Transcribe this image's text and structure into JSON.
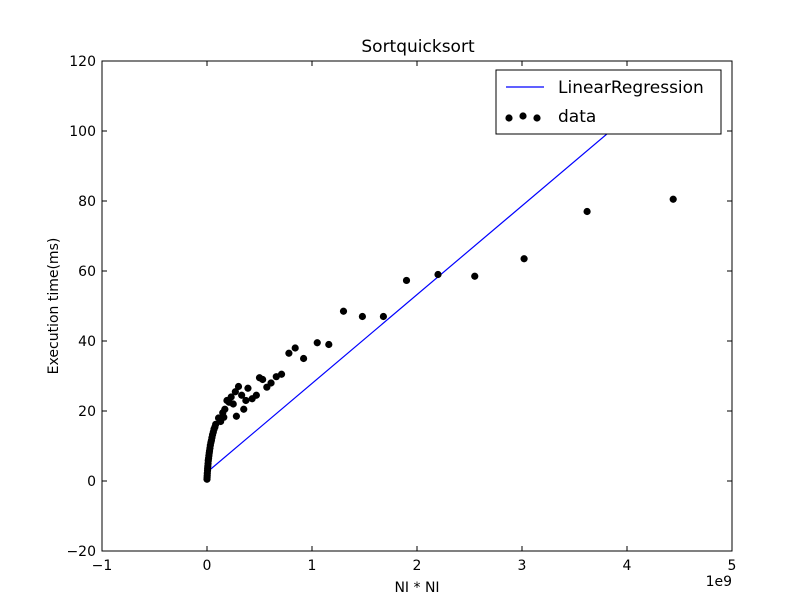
{
  "chart_data": {
    "type": "scatter",
    "title": "Sortquicksort",
    "xlabel": "NI * NI",
    "ylabel": "Execution time(ms)",
    "x_scale_label": "1e9",
    "xlim": [
      -1,
      5
    ],
    "ylim": [
      -20,
      120
    ],
    "xticks": [
      -1,
      0,
      1,
      2,
      3,
      4,
      5
    ],
    "yticks": [
      -20,
      0,
      20,
      40,
      60,
      80,
      100,
      120
    ],
    "xtick_labels": [
      "−1",
      "0",
      "1",
      "2",
      "3",
      "4",
      "5"
    ],
    "ytick_labels": [
      "−20",
      "0",
      "20",
      "40",
      "60",
      "80",
      "100",
      "120"
    ],
    "grid": false,
    "legend": {
      "position": "top-right",
      "entries": [
        {
          "label": "LinearRegression",
          "kind": "line",
          "color": "#0000ff"
        },
        {
          "label": "data",
          "kind": "marker",
          "color": "#000000"
        }
      ]
    },
    "series": [
      {
        "name": "LinearRegression",
        "kind": "line",
        "color": "#0000ff",
        "points": [
          [
            0.0,
            2.5
          ],
          [
            4.0,
            104.0
          ]
        ]
      },
      {
        "name": "data",
        "kind": "scatter",
        "color": "#000000",
        "points": [
          [
            0.0,
            0.5
          ],
          [
            0.001,
            1.0
          ],
          [
            0.002,
            1.5
          ],
          [
            0.003,
            2.2
          ],
          [
            0.005,
            3.0
          ],
          [
            0.006,
            3.6
          ],
          [
            0.008,
            4.2
          ],
          [
            0.01,
            5.0
          ],
          [
            0.012,
            5.8
          ],
          [
            0.015,
            6.5
          ],
          [
            0.018,
            7.2
          ],
          [
            0.021,
            8.0
          ],
          [
            0.024,
            8.6
          ],
          [
            0.028,
            9.4
          ],
          [
            0.032,
            10.2
          ],
          [
            0.037,
            11.0
          ],
          [
            0.042,
            11.6
          ],
          [
            0.047,
            12.4
          ],
          [
            0.053,
            13.2
          ],
          [
            0.06,
            14.0
          ],
          [
            0.067,
            14.8
          ],
          [
            0.075,
            15.4
          ],
          [
            0.083,
            16.2
          ],
          [
            0.11,
            18.0
          ],
          [
            0.13,
            17.0
          ],
          [
            0.15,
            19.5
          ],
          [
            0.16,
            18.2
          ],
          [
            0.17,
            20.5
          ],
          [
            0.19,
            23.0
          ],
          [
            0.21,
            22.5
          ],
          [
            0.23,
            24.0
          ],
          [
            0.25,
            22.0
          ],
          [
            0.27,
            25.5
          ],
          [
            0.28,
            18.5
          ],
          [
            0.3,
            27.0
          ],
          [
            0.33,
            24.5
          ],
          [
            0.35,
            20.5
          ],
          [
            0.37,
            23.0
          ],
          [
            0.39,
            26.5
          ],
          [
            0.43,
            23.5
          ],
          [
            0.47,
            24.5
          ],
          [
            0.5,
            29.5
          ],
          [
            0.53,
            29.0
          ],
          [
            0.57,
            26.8
          ],
          [
            0.61,
            28.0
          ],
          [
            0.66,
            29.8
          ],
          [
            0.71,
            30.5
          ],
          [
            0.78,
            36.5
          ],
          [
            0.84,
            38.0
          ],
          [
            0.92,
            35.0
          ],
          [
            1.05,
            39.5
          ],
          [
            1.16,
            39.0
          ],
          [
            1.3,
            48.5
          ],
          [
            1.48,
            47.0
          ],
          [
            1.68,
            47.0
          ],
          [
            1.9,
            57.3
          ],
          [
            2.2,
            59.0
          ],
          [
            2.55,
            58.5
          ],
          [
            3.02,
            63.5
          ],
          [
            3.62,
            77.0
          ],
          [
            4.44,
            80.5
          ]
        ]
      }
    ]
  }
}
